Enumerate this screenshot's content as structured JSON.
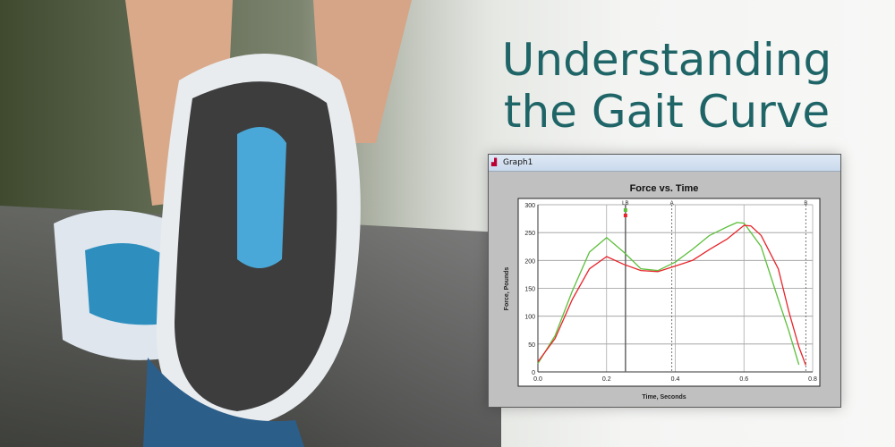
{
  "headline": {
    "line1": "Understanding",
    "line2": "the Gait Curve",
    "color": "#1f6567"
  },
  "window": {
    "title": "Graph1",
    "icon": "chart-icon"
  },
  "chart_data": {
    "type": "line",
    "title": "Force vs. Time",
    "xlabel": "Time, Seconds",
    "ylabel": "Force, Pounds",
    "xlim": [
      0,
      0.8
    ],
    "ylim": [
      0,
      300
    ],
    "xticks": [
      "0.0",
      "0.2",
      "0.4",
      "0.6",
      "0.8"
    ],
    "yticks": [
      "0",
      "50",
      "100",
      "150",
      "200",
      "250",
      "300"
    ],
    "grid": true,
    "markers": [
      {
        "label": "LB",
        "x": 0.255
      },
      {
        "label": "A",
        "x": 0.39
      },
      {
        "label": "B",
        "x": 0.78
      }
    ],
    "series": [
      {
        "color": "#5cbf3a",
        "x": [
          0,
          0.05,
          0.1,
          0.15,
          0.2,
          0.25,
          0.3,
          0.35,
          0.4,
          0.45,
          0.5,
          0.55,
          0.58,
          0.6,
          0.65,
          0.7,
          0.73,
          0.76
        ],
        "y": [
          15,
          65,
          145,
          215,
          241,
          215,
          185,
          182,
          197,
          220,
          245,
          260,
          268,
          267,
          225,
          130,
          75,
          13
        ]
      },
      {
        "color": "#e8242a",
        "x": [
          0,
          0.05,
          0.1,
          0.15,
          0.2,
          0.25,
          0.3,
          0.35,
          0.4,
          0.45,
          0.5,
          0.55,
          0.6,
          0.62,
          0.65,
          0.7,
          0.73,
          0.76,
          0.78
        ],
        "y": [
          18,
          60,
          130,
          185,
          207,
          193,
          182,
          180,
          190,
          200,
          220,
          238,
          263,
          262,
          245,
          185,
          110,
          45,
          12
        ]
      }
    ]
  }
}
